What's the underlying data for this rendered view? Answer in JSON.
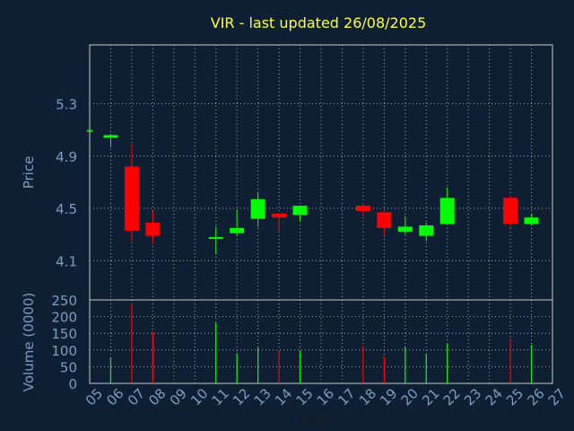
{
  "colors": {
    "background": "#0f1f33",
    "up": "#00ff00",
    "down": "#ff0000",
    "title": "#ffff33",
    "axis_text": "#7a9ec0",
    "frame": "#c8c8c8",
    "grid": "#c8c8c8"
  },
  "chart_data": [
    {
      "type": "candlestick",
      "title": "VIR - last updated 26/08/2025",
      "ylabel": "Price",
      "ylim": [
        3.8,
        5.75
      ],
      "yticks": [
        4.1,
        4.5,
        4.9,
        5.3
      ],
      "ytick_labels": [
        "4.1",
        "4.5",
        "4.9",
        "5.3"
      ],
      "grid": true,
      "x_range": [
        5,
        27
      ],
      "candles": [
        {
          "day": 5,
          "open": 5.09,
          "close": 5.1,
          "high": 5.1,
          "low": 5.09
        },
        {
          "day": 6,
          "open": 5.04,
          "close": 5.06,
          "high": 5.07,
          "low": 4.97
        },
        {
          "day": 7,
          "open": 4.82,
          "close": 4.33,
          "high": 4.99,
          "low": 4.25
        },
        {
          "day": 8,
          "open": 4.39,
          "close": 4.29,
          "high": 4.48,
          "low": 4.23
        },
        {
          "day": 11,
          "open": 4.27,
          "close": 4.28,
          "high": 4.36,
          "low": 4.15
        },
        {
          "day": 12,
          "open": 4.31,
          "close": 4.35,
          "high": 4.49,
          "low": 4.29
        },
        {
          "day": 13,
          "open": 4.42,
          "close": 4.57,
          "high": 4.62,
          "low": 4.36
        },
        {
          "day": 14,
          "open": 4.46,
          "close": 4.43,
          "high": 4.46,
          "low": 4.32
        },
        {
          "day": 15,
          "open": 4.45,
          "close": 4.52,
          "high": 4.52,
          "low": 4.4
        },
        {
          "day": 18,
          "open": 4.52,
          "close": 4.48,
          "high": 4.54,
          "low": 4.44
        },
        {
          "day": 19,
          "open": 4.47,
          "close": 4.35,
          "high": 4.47,
          "low": 4.3
        },
        {
          "day": 20,
          "open": 4.32,
          "close": 4.36,
          "high": 4.44,
          "low": 4.3
        },
        {
          "day": 21,
          "open": 4.29,
          "close": 4.37,
          "high": 4.39,
          "low": 4.25
        },
        {
          "day": 22,
          "open": 4.38,
          "close": 4.58,
          "high": 4.66,
          "low": 4.38
        },
        {
          "day": 25,
          "open": 4.58,
          "close": 4.38,
          "high": 4.6,
          "low": 4.35
        },
        {
          "day": 26,
          "open": 4.38,
          "close": 4.43,
          "high": 4.46,
          "low": 4.37
        }
      ]
    },
    {
      "type": "bar",
      "ylabel": "Volume (0000)",
      "xlabel": "Day",
      "ylim": [
        0,
        250
      ],
      "yticks": [
        0,
        50,
        100,
        150,
        200,
        250
      ],
      "ytick_labels": [
        "0",
        "50",
        "100",
        "150",
        "200",
        "250"
      ],
      "x_range": [
        5,
        27
      ],
      "xticks": [
        5,
        6,
        7,
        8,
        9,
        10,
        11,
        12,
        13,
        14,
        15,
        16,
        17,
        18,
        19,
        20,
        21,
        22,
        23,
        24,
        25,
        26,
        27
      ],
      "xtick_labels": [
        "05",
        "06",
        "07",
        "08",
        "09",
        "10",
        "11",
        "12",
        "13",
        "14",
        "15",
        "16",
        "17",
        "18",
        "19",
        "20",
        "21",
        "22",
        "23",
        "24",
        "25",
        "26",
        "27"
      ],
      "bars": [
        {
          "day": 6,
          "value": 78,
          "color": "up"
        },
        {
          "day": 7,
          "value": 238,
          "color": "down"
        },
        {
          "day": 8,
          "value": 155,
          "color": "down"
        },
        {
          "day": 11,
          "value": 182,
          "color": "up"
        },
        {
          "day": 12,
          "value": 90,
          "color": "up"
        },
        {
          "day": 13,
          "value": 108,
          "color": "up"
        },
        {
          "day": 14,
          "value": 100,
          "color": "down"
        },
        {
          "day": 15,
          "value": 98,
          "color": "up"
        },
        {
          "day": 18,
          "value": 112,
          "color": "down"
        },
        {
          "day": 19,
          "value": 80,
          "color": "down"
        },
        {
          "day": 20,
          "value": 110,
          "color": "up"
        },
        {
          "day": 21,
          "value": 88,
          "color": "up"
        },
        {
          "day": 22,
          "value": 120,
          "color": "up"
        },
        {
          "day": 25,
          "value": 135,
          "color": "down"
        },
        {
          "day": 26,
          "value": 115,
          "color": "up"
        }
      ]
    }
  ]
}
